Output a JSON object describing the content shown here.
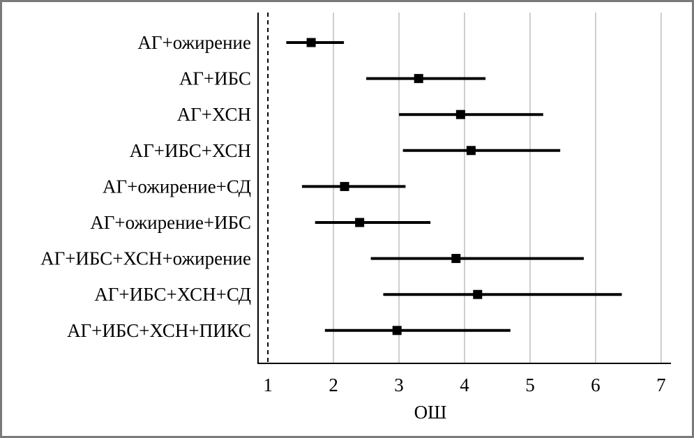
{
  "chart_data": {
    "type": "forest",
    "title": "",
    "xlabel": "ОШ",
    "ylabel": "",
    "xlim": [
      0.85,
      7.15
    ],
    "xticks": [
      1,
      2,
      3,
      4,
      5,
      6,
      7
    ],
    "xtick_labels": [
      "1",
      "2",
      "3",
      "4",
      "5",
      "6",
      "7"
    ],
    "reference_line": 1,
    "grid": "vertical",
    "categories": [
      "АГ+ожирение",
      "АГ+ИБС",
      "АГ+ХСН",
      "АГ+ИБС+ХСН",
      "АГ+ожирение+СД",
      "АГ+ожирение+ИБС",
      "АГ+ИБС+ХСН+ожирение",
      "АГ+ИБС+ХСН+СД",
      "АГ+ИБС+ХСН+ПИКС"
    ],
    "values": [
      1.66,
      3.3,
      3.94,
      4.1,
      2.17,
      2.4,
      3.87,
      4.2,
      2.97
    ],
    "ci_low": [
      1.28,
      2.5,
      3.0,
      3.06,
      1.52,
      1.72,
      2.57,
      2.76,
      1.87
    ],
    "ci_high": [
      2.16,
      4.32,
      5.2,
      5.46,
      3.1,
      3.48,
      5.82,
      6.4,
      4.7
    ]
  }
}
